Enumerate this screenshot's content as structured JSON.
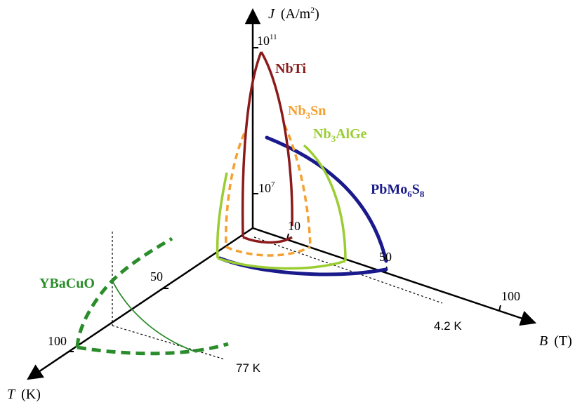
{
  "axes": {
    "j_label": "J",
    "j_unit": "(A/m",
    "j_unit_exp": "2",
    "j_unit_close": ")",
    "b_label": "B",
    "b_unit": "(T)",
    "t_label": "T",
    "t_unit": "(K)",
    "j_tick_high_base": "10",
    "j_tick_high_exp": "11",
    "j_tick_low_base": "10",
    "j_tick_low_exp": "7",
    "b_tick_10": "10",
    "b_tick_50": "50",
    "b_tick_100": "100",
    "t_tick_50": "50",
    "t_tick_100": "100"
  },
  "temperature_markers": {
    "low": "4.2 K",
    "high": "77 K"
  },
  "materials": [
    {
      "id": "nbti",
      "name": "NbTi",
      "color": "#8b1a1a"
    },
    {
      "id": "nb3sn",
      "name_base": "Nb",
      "sub": "3",
      "name_rest": "Sn",
      "color": "#f5a030"
    },
    {
      "id": "nb3alge",
      "name_base": "Nb",
      "sub": "3",
      "name_rest": "AlGe",
      "color": "#9acd32"
    },
    {
      "id": "pbmo6s8",
      "name_base": "PbMo",
      "sub": "6",
      "name_mid": "S",
      "sub2": "8",
      "color": "#1a1a8c"
    },
    {
      "id": "ybacuo",
      "name": "YBaCuO",
      "color": "#2a8c2a"
    }
  ]
}
